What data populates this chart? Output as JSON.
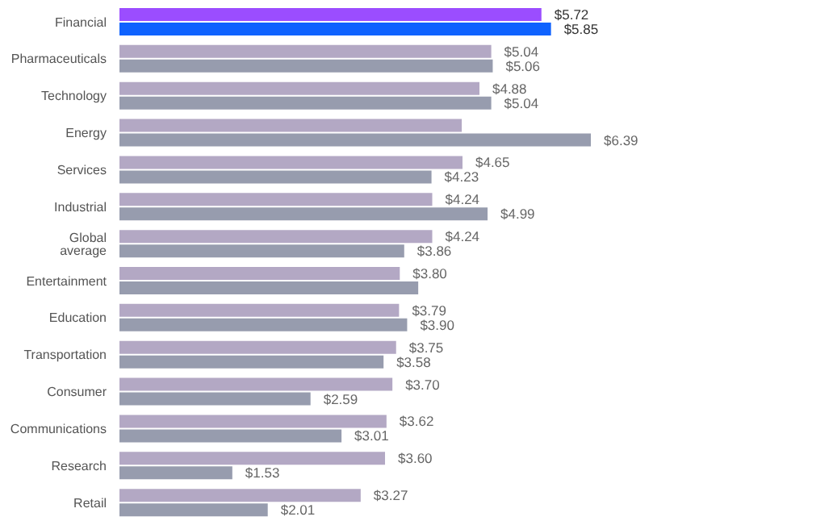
{
  "chart_data": {
    "type": "bar",
    "orientation": "horizontal",
    "categories": [
      "Financial",
      "Pharmaceuticals",
      "Technology",
      "Energy",
      "Services",
      "Industrial",
      "Global average",
      "Entertainment",
      "Education",
      "Transportation",
      "Consumer",
      "Communications",
      "Research",
      "Retail"
    ],
    "series": [
      {
        "colors": [
          "#9b4dff",
          "#b3a8c4",
          "#b3a8c4",
          "#b3a8c4",
          "#b3a8c4",
          "#b3a8c4",
          "#b3a8c4",
          "#b3a8c4",
          "#b3a8c4",
          "#b3a8c4",
          "#b3a8c4",
          "#b3a8c4",
          "#b3a8c4",
          "#b3a8c4"
        ],
        "values": [
          5.72,
          5.04,
          4.88,
          4.64,
          4.65,
          4.24,
          4.24,
          3.8,
          3.79,
          3.75,
          3.7,
          3.62,
          3.6,
          3.27
        ],
        "value_labels": [
          "$5.72",
          "$5.04",
          "$4.88",
          null,
          "$4.65",
          "$4.24",
          "$4.24",
          "$3.80",
          "$3.79",
          "$3.75",
          "$3.70",
          "$3.62",
          "$3.60",
          "$3.27"
        ]
      },
      {
        "colors": [
          "#0f62fe",
          "#979cae",
          "#979cae",
          "#979cae",
          "#979cae",
          "#979cae",
          "#979cae",
          "#979cae",
          "#979cae",
          "#979cae",
          "#979cae",
          "#979cae",
          "#979cae",
          "#979cae"
        ],
        "values": [
          5.85,
          5.06,
          5.04,
          6.39,
          4.23,
          4.99,
          3.86,
          4.05,
          3.9,
          3.58,
          2.59,
          3.01,
          1.53,
          2.01
        ],
        "value_labels": [
          "$5.85",
          "$5.06",
          "$5.04",
          "$6.39",
          "$4.23",
          "$4.99",
          "$3.86",
          null,
          "$3.90",
          "$3.58",
          "$2.59",
          "$3.01",
          "$1.53",
          "$2.01"
        ]
      }
    ],
    "tick_labels": "y"
  }
}
